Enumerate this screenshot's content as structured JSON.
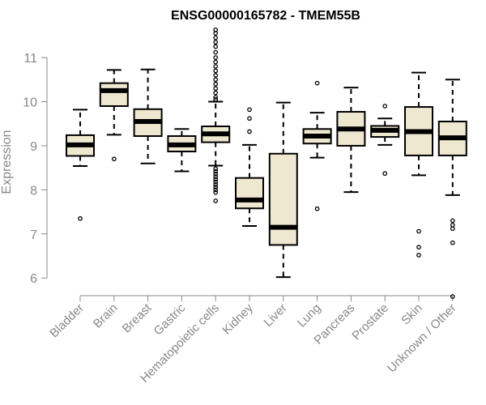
{
  "chart_data": {
    "type": "boxplot",
    "title": "ENSG00000165782 - TMEM55B",
    "ylabel": "Expression",
    "xlabel": "",
    "ylim": [
      5.6,
      11.7
    ],
    "yticks": [
      6,
      7,
      8,
      9,
      10,
      11
    ],
    "categories": [
      "Bladder",
      "Brain",
      "Breast",
      "Gastric",
      "Hematopoietic cells",
      "Kidney",
      "Liver",
      "Lung",
      "Pancreas",
      "Prostate",
      "Skin",
      "Unknown / Other"
    ],
    "boxes": [
      {
        "q1": 8.77,
        "median": 9.02,
        "q3": 9.24,
        "whisker_low": 8.54,
        "whisker_high": 9.82,
        "outliers": [
          7.35
        ]
      },
      {
        "q1": 9.9,
        "median": 10.25,
        "q3": 10.42,
        "whisker_low": 9.25,
        "whisker_high": 10.72,
        "outliers": [
          8.7
        ]
      },
      {
        "q1": 9.22,
        "median": 9.55,
        "q3": 9.83,
        "whisker_low": 8.6,
        "whisker_high": 10.73,
        "outliers": []
      },
      {
        "q1": 8.87,
        "median": 9.02,
        "q3": 9.22,
        "whisker_low": 8.42,
        "whisker_high": 9.38,
        "outliers": []
      },
      {
        "q1": 9.08,
        "median": 9.27,
        "q3": 9.44,
        "whisker_low": 8.55,
        "whisker_high": 10.0,
        "outliers": [
          11.63,
          11.55,
          11.45,
          11.35,
          11.25,
          11.12,
          11.0,
          10.9,
          10.8,
          10.7,
          10.6,
          10.5,
          10.4,
          10.3,
          10.2,
          10.1,
          10.05,
          8.48,
          8.42,
          8.36,
          8.3,
          8.24,
          8.18,
          8.12,
          8.06,
          8.0,
          7.94,
          7.75
        ]
      },
      {
        "q1": 7.58,
        "median": 7.77,
        "q3": 8.27,
        "whisker_low": 7.18,
        "whisker_high": 9.02,
        "outliers": [
          9.82,
          9.62,
          9.32
        ]
      },
      {
        "q1": 6.75,
        "median": 7.15,
        "q3": 8.82,
        "whisker_low": 6.02,
        "whisker_high": 9.98,
        "outliers": []
      },
      {
        "q1": 9.05,
        "median": 9.22,
        "q3": 9.38,
        "whisker_low": 8.73,
        "whisker_high": 9.75,
        "outliers": [
          10.42,
          7.57
        ]
      },
      {
        "q1": 9.0,
        "median": 9.38,
        "q3": 9.77,
        "whisker_low": 7.95,
        "whisker_high": 10.32,
        "outliers": []
      },
      {
        "q1": 9.2,
        "median": 9.35,
        "q3": 9.45,
        "whisker_low": 9.02,
        "whisker_high": 9.62,
        "outliers": [
          9.9,
          8.37
        ]
      },
      {
        "q1": 8.78,
        "median": 9.32,
        "q3": 9.88,
        "whisker_low": 8.33,
        "whisker_high": 10.66,
        "outliers": [
          7.06,
          6.7,
          6.52
        ]
      },
      {
        "q1": 8.78,
        "median": 9.18,
        "q3": 9.55,
        "whisker_low": 7.88,
        "whisker_high": 10.5,
        "outliers": [
          7.3,
          7.2,
          7.12,
          6.8,
          5.58
        ]
      }
    ],
    "box_fill": "#efe8d0",
    "axis_color": "#888888",
    "grid": false,
    "legend": "none"
  }
}
